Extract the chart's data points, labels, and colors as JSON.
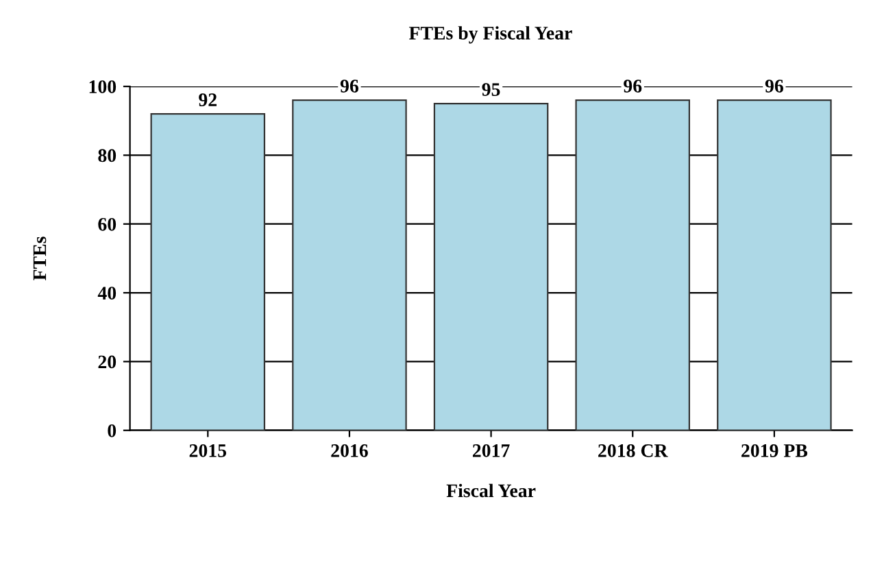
{
  "chart_data": {
    "type": "bar",
    "title": "FTEs by Fiscal Year",
    "xlabel": "Fiscal Year",
    "ylabel": "FTEs",
    "categories": [
      "2015",
      "2016",
      "2017",
      "2018 CR",
      "2019 PB"
    ],
    "values": [
      92,
      96,
      95,
      96,
      96
    ],
    "color": "#add8e6",
    "ylim": [
      0,
      100
    ],
    "yticks": [
      0,
      20,
      40,
      60,
      80,
      100
    ],
    "grid": "y",
    "data_labels": true
  }
}
